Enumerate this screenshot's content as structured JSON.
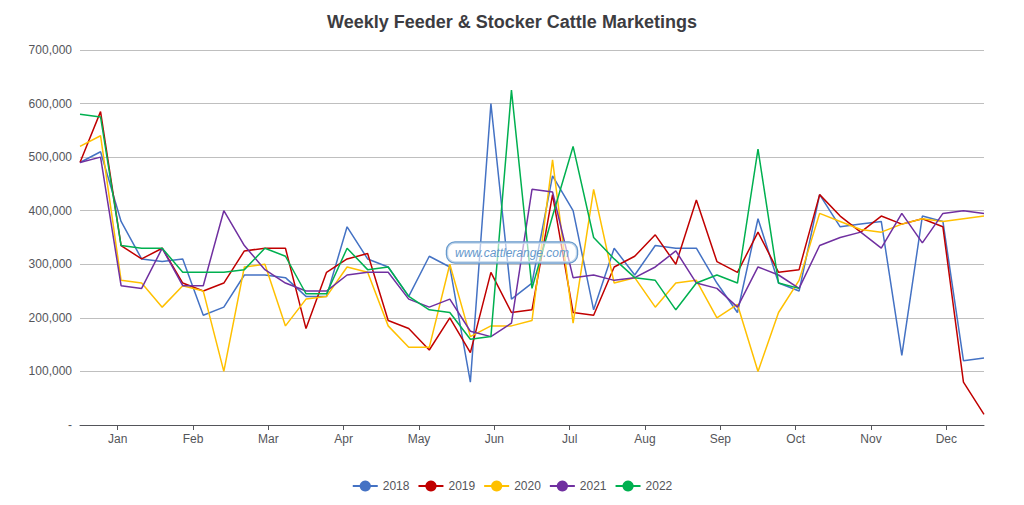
{
  "chart_data": {
    "type": "line",
    "title": "Weekly Feeder & Stocker Cattle Marketings",
    "annotations": [
      "www.cattlerange.com"
    ],
    "x": [
      0,
      1.1818181818181819,
      2.3636363636363638,
      3.5454545454545454,
      4.7272727272727275,
      5.909090909090909,
      7.090909090909091,
      8.272727272727273,
      9.454545454545455,
      10.636363636363637,
      11.818181818181818,
      13,
      14.181818181818182,
      15.363636363636363,
      16.545454545454547,
      17.727272727272727,
      18.90909090909091,
      20.09090909090909,
      21.272727272727273,
      22.454545454545453,
      23.636363636363637,
      24.818181818181817,
      26,
      27.181818181818183,
      28.363636363636363,
      29.545454545454547,
      30.727272727272727,
      31.90909090909091,
      33.09090909090909,
      34.27272727272727,
      35.45454545454545,
      36.63636363636363,
      37.81818181818182,
      39,
      40.18181818181818,
      41.36363636363637,
      42.54545454545455,
      43.72727272727273,
      44.90909090909091,
      46.09090909090909,
      47.27272727272727,
      48.45454545454545,
      49.63636363636363,
      50.81818181818182,
      52
    ],
    "xlim": [
      0,
      52
    ],
    "xticks": [
      {
        "value": 2.1666666666666665,
        "label": "Jan"
      },
      {
        "value": 6.5,
        "label": "Feb"
      },
      {
        "value": 10.833333333333334,
        "label": "Mar"
      },
      {
        "value": 15.166666666666666,
        "label": "Apr"
      },
      {
        "value": 19.5,
        "label": "May"
      },
      {
        "value": 23.833333333333332,
        "label": "Jun"
      },
      {
        "value": 28.166666666666668,
        "label": "Jul"
      },
      {
        "value": 32.5,
        "label": "Aug"
      },
      {
        "value": 36.833333333333336,
        "label": "Sep"
      },
      {
        "value": 41.166666666666664,
        "label": "Oct"
      },
      {
        "value": 45.5,
        "label": "Nov"
      },
      {
        "value": 49.833333333333336,
        "label": "Dec"
      }
    ],
    "ylim": [
      0,
      700000
    ],
    "yticks": [
      {
        "value": 0,
        "label": "-"
      },
      {
        "value": 100000,
        "label": "100,000"
      },
      {
        "value": 200000,
        "label": "200,000"
      },
      {
        "value": 300000,
        "label": "300,000"
      },
      {
        "value": 400000,
        "label": "400,000"
      },
      {
        "value": 500000,
        "label": "500,000"
      },
      {
        "value": 600000,
        "label": "600,000"
      },
      {
        "value": 700000,
        "label": "700,000"
      }
    ],
    "grid": true,
    "legend": "bottom",
    "series": [
      {
        "name": "2018",
        "color": "#4472C4",
        "values": [
          490000,
          510000,
          380000,
          310000,
          305000,
          310000,
          205000,
          220000,
          280000,
          280000,
          275000,
          240000,
          240000,
          370000,
          310000,
          295000,
          240000,
          315000,
          295000,
          80000,
          600000,
          235000,
          265000,
          465000,
          400000,
          215000,
          330000,
          280000,
          335000,
          330000,
          330000,
          265000,
          210000,
          385000,
          265000,
          250000,
          430000,
          370000,
          375000,
          380000,
          130000,
          390000,
          380000,
          120000,
          125000
        ]
      },
      {
        "name": "2019",
        "color": "#C00000",
        "values": [
          490000,
          585000,
          335000,
          310000,
          330000,
          265000,
          250000,
          265000,
          325000,
          330000,
          330000,
          180000,
          285000,
          310000,
          320000,
          195000,
          180000,
          140000,
          200000,
          135000,
          285000,
          210000,
          215000,
          430000,
          210000,
          205000,
          295000,
          315000,
          355000,
          300000,
          420000,
          305000,
          285000,
          360000,
          285000,
          290000,
          430000,
          390000,
          360000,
          390000,
          375000,
          385000,
          370000,
          80000,
          20000
        ]
      },
      {
        "name": "2020",
        "color": "#FFC000",
        "values": [
          520000,
          540000,
          270000,
          265000,
          220000,
          260000,
          250000,
          100000,
          295000,
          300000,
          185000,
          235000,
          240000,
          295000,
          285000,
          185000,
          145000,
          145000,
          300000,
          165000,
          185000,
          185000,
          195000,
          495000,
          190000,
          440000,
          265000,
          275000,
          220000,
          265000,
          270000,
          200000,
          225000,
          100000,
          210000,
          270000,
          395000,
          380000,
          365000,
          360000,
          375000,
          385000,
          380000,
          385000,
          390000
        ]
      },
      {
        "name": "2021",
        "color": "#7030A0",
        "values": [
          490000,
          500000,
          260000,
          255000,
          330000,
          260000,
          260000,
          400000,
          335000,
          290000,
          265000,
          250000,
          250000,
          280000,
          285000,
          285000,
          235000,
          220000,
          235000,
          175000,
          165000,
          190000,
          440000,
          435000,
          275000,
          280000,
          270000,
          275000,
          295000,
          325000,
          265000,
          255000,
          220000,
          295000,
          280000,
          255000,
          335000,
          350000,
          360000,
          330000,
          395000,
          340000,
          395000,
          400000,
          395000
        ]
      },
      {
        "name": "2022",
        "color": "#00B050",
        "values": [
          580000,
          575000,
          335000,
          330000,
          330000,
          285000,
          285000,
          285000,
          290000,
          330000,
          315000,
          245000,
          245000,
          330000,
          290000,
          295000,
          240000,
          215000,
          210000,
          160000,
          165000,
          625000,
          255000,
          390000,
          520000,
          350000,
          310000,
          275000,
          270000,
          215000,
          265000,
          280000,
          265000,
          515000,
          265000,
          255000,
          null,
          null,
          null,
          null,
          null,
          null,
          null,
          null,
          null
        ]
      }
    ]
  }
}
